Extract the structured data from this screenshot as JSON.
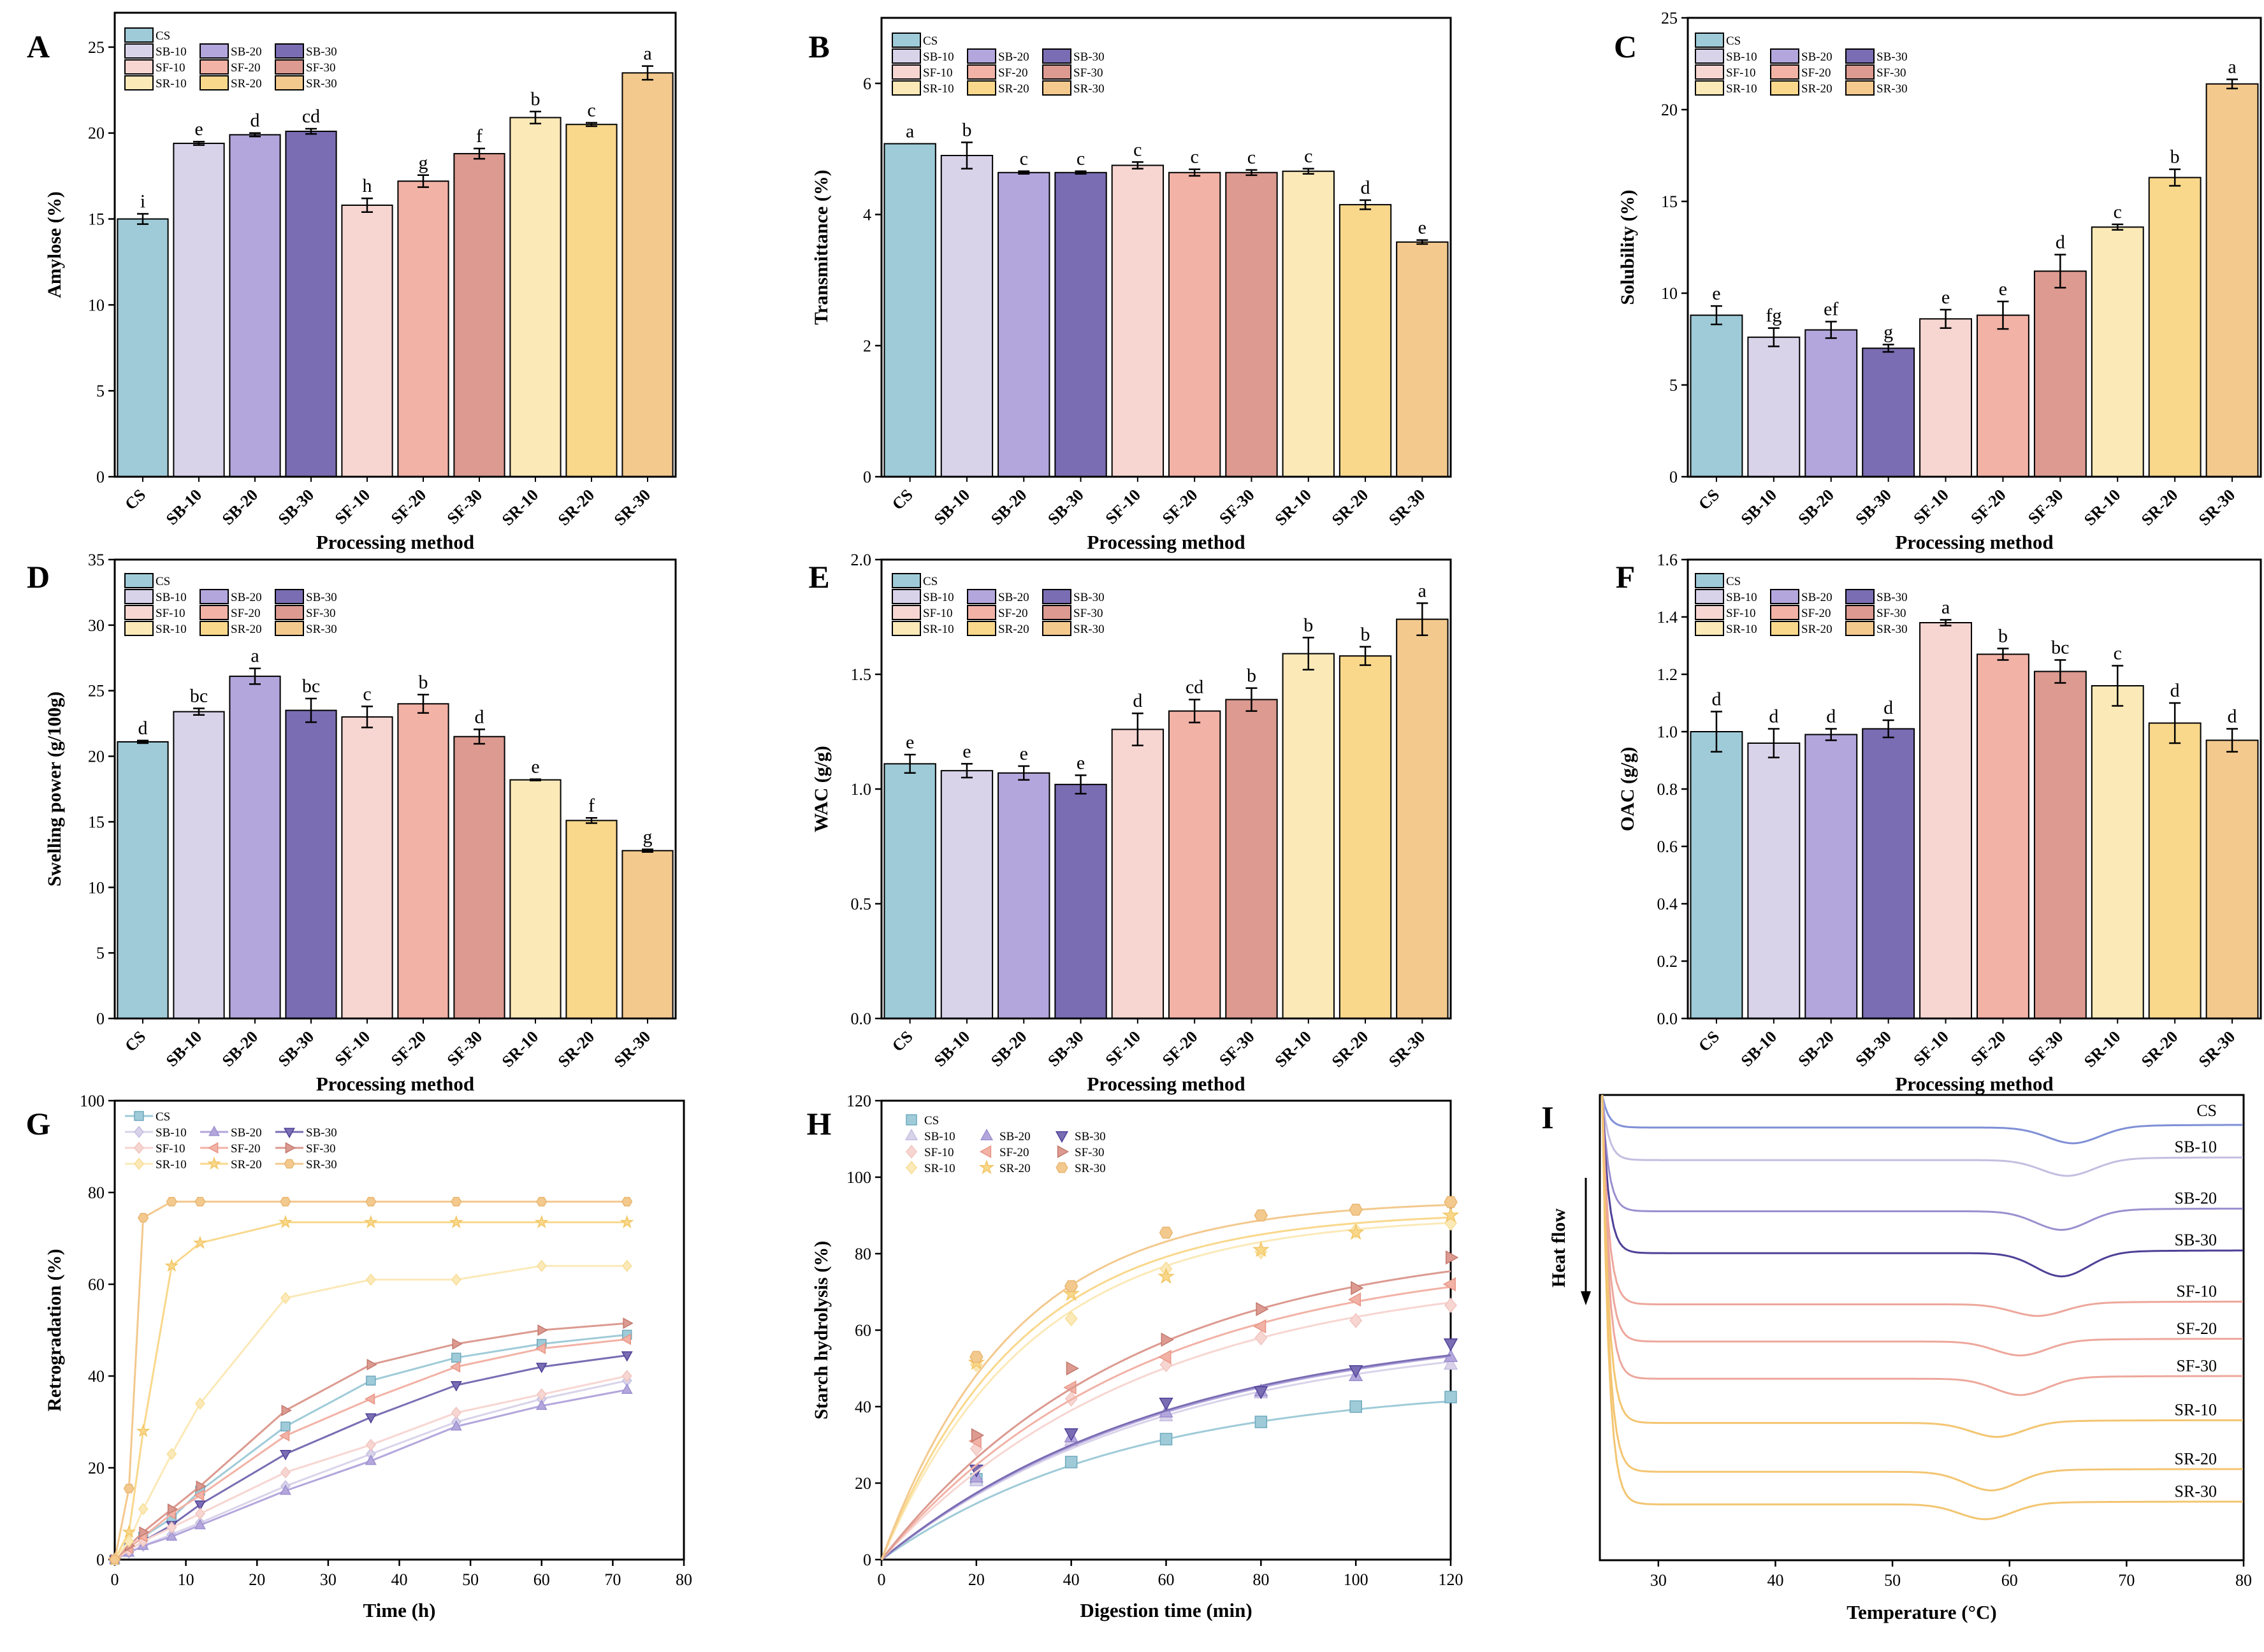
{
  "colors": {
    "CS": "#9fcbd8",
    "SB-10": "#d9d3ea",
    "SB-20": "#b3a6dc",
    "SB-30": "#7a6db3",
    "SF-10": "#f7d6d2",
    "SF-20": "#f2b2a6",
    "SF-30": "#dc9a90",
    "SR-10": "#fbe9b8",
    "SR-20": "#f9d88c",
    "SR-30": "#f3c98e"
  },
  "legend_rows": [
    [
      "CS"
    ],
    [
      "SB-10",
      "SB-20",
      "SB-30"
    ],
    [
      "SF-10",
      "SF-20",
      "SF-30"
    ],
    [
      "SR-10",
      "SR-20",
      "SR-30"
    ]
  ],
  "chart_data": [
    {
      "panel": "A",
      "type": "bar",
      "categories": [
        "CS",
        "SB-10",
        "SB-20",
        "SB-30",
        "SF-10",
        "SF-20",
        "SF-30",
        "SR-10",
        "SR-20",
        "SR-30"
      ],
      "values": [
        15.0,
        19.4,
        19.9,
        20.1,
        15.8,
        17.2,
        18.8,
        20.9,
        20.5,
        23.5
      ],
      "errors": [
        0.3,
        0.1,
        0.1,
        0.15,
        0.4,
        0.35,
        0.3,
        0.35,
        0.1,
        0.4
      ],
      "letters": [
        "i",
        "e",
        "d",
        "cd",
        "h",
        "g",
        "f",
        "b",
        "c",
        "a"
      ],
      "xlabel": "Processing method",
      "ylabel": "Amylose (%)",
      "ylim": [
        0,
        27
      ],
      "yticks": [
        0,
        5,
        10,
        15,
        20,
        25
      ]
    },
    {
      "panel": "B",
      "type": "bar",
      "categories": [
        "CS",
        "SB-10",
        "SB-20",
        "SB-30",
        "SF-10",
        "SF-20",
        "SF-30",
        "SR-10",
        "SR-20",
        "SR-30"
      ],
      "values": [
        5.08,
        4.9,
        4.64,
        4.64,
        4.75,
        4.64,
        4.64,
        4.66,
        4.15,
        3.58
      ],
      "errors": [
        0.0,
        0.2,
        0.02,
        0.02,
        0.05,
        0.05,
        0.04,
        0.04,
        0.07,
        0.03
      ],
      "letters": [
        "a",
        "b",
        "c",
        "c",
        "c",
        "c",
        "c",
        "c",
        "d",
        "e"
      ],
      "xlabel": "Processing method",
      "ylabel": "Transmittance (%)",
      "ylim": [
        0,
        7
      ],
      "yticks": [
        0,
        2,
        4,
        6
      ]
    },
    {
      "panel": "C",
      "type": "bar",
      "categories": [
        "CS",
        "SB-10",
        "SB-20",
        "SB-30",
        "SF-10",
        "SF-20",
        "SF-30",
        "SR-10",
        "SR-20",
        "SR-30"
      ],
      "values": [
        8.8,
        7.6,
        8.0,
        7.0,
        8.6,
        8.8,
        11.2,
        13.6,
        16.3,
        21.4
      ],
      "errors": [
        0.5,
        0.5,
        0.45,
        0.2,
        0.5,
        0.75,
        0.9,
        0.15,
        0.45,
        0.25
      ],
      "letters": [
        "e",
        "fg",
        "ef",
        "g",
        "e",
        "e",
        "d",
        "c",
        "b",
        "a"
      ],
      "xlabel": "Processing method",
      "ylabel": "Solubility (%)",
      "ylim": [
        0,
        25
      ],
      "yticks": [
        0,
        5,
        10,
        15,
        20,
        25
      ]
    },
    {
      "panel": "D",
      "type": "bar",
      "categories": [
        "CS",
        "SB-10",
        "SB-20",
        "SB-30",
        "SF-10",
        "SF-20",
        "SF-30",
        "SR-10",
        "SR-20",
        "SR-30"
      ],
      "values": [
        21.1,
        23.4,
        26.1,
        23.5,
        23.0,
        24.0,
        21.5,
        18.2,
        15.1,
        12.8
      ],
      "errors": [
        0.1,
        0.25,
        0.6,
        0.9,
        0.8,
        0.7,
        0.55,
        0.05,
        0.2,
        0.1
      ],
      "letters": [
        "d",
        "bc",
        "a",
        "bc",
        "c",
        "b",
        "d",
        "e",
        "f",
        "g"
      ],
      "xlabel": "Processing method",
      "ylabel": "Swelling power (g/100g)",
      "ylim": [
        0,
        35
      ],
      "yticks": [
        0,
        5,
        10,
        15,
        20,
        25,
        30,
        35
      ]
    },
    {
      "panel": "E",
      "type": "bar",
      "categories": [
        "CS",
        "SB-10",
        "SB-20",
        "SB-30",
        "SF-10",
        "SF-20",
        "SF-30",
        "SR-10",
        "SR-20",
        "SR-30"
      ],
      "values": [
        1.11,
        1.08,
        1.07,
        1.02,
        1.26,
        1.34,
        1.39,
        1.59,
        1.58,
        1.74
      ],
      "errors": [
        0.04,
        0.03,
        0.03,
        0.04,
        0.07,
        0.05,
        0.05,
        0.07,
        0.04,
        0.07
      ],
      "letters": [
        "e",
        "e",
        "e",
        "e",
        "d",
        "cd",
        "b",
        "b",
        "b",
        "a"
      ],
      "xlabel": "Processing method",
      "ylabel": "WAC (g/g)",
      "ylim": [
        0,
        2.0
      ],
      "yticks": [
        0.0,
        0.5,
        1.0,
        1.5,
        2.0
      ]
    },
    {
      "panel": "F",
      "type": "bar",
      "categories": [
        "CS",
        "SB-10",
        "SB-20",
        "SB-30",
        "SF-10",
        "SF-20",
        "SF-30",
        "SR-10",
        "SR-20",
        "SR-30"
      ],
      "values": [
        1.0,
        0.96,
        0.99,
        1.01,
        1.38,
        1.27,
        1.21,
        1.16,
        1.03,
        0.97
      ],
      "errors": [
        0.07,
        0.05,
        0.02,
        0.03,
        0.01,
        0.02,
        0.04,
        0.07,
        0.07,
        0.04
      ],
      "letters": [
        "d",
        "d",
        "d",
        "d",
        "a",
        "b",
        "bc",
        "c",
        "d",
        "d"
      ],
      "xlabel": "Processing method",
      "ylabel": "OAC (g/g)",
      "ylim": [
        0,
        1.6
      ],
      "yticks": [
        0.0,
        0.2,
        0.4,
        0.6,
        0.8,
        1.0,
        1.2,
        1.4,
        1.6
      ]
    },
    {
      "panel": "G",
      "type": "line",
      "x": [
        0,
        2,
        4,
        8,
        12,
        24,
        36,
        48,
        60,
        72
      ],
      "series": [
        {
          "name": "CS",
          "values": [
            0,
            2.5,
            5,
            9,
            15,
            29,
            39,
            44,
            47,
            49
          ]
        },
        {
          "name": "SB-10",
          "values": [
            0,
            1.5,
            3,
            5.5,
            8,
            16,
            23,
            30,
            35,
            39
          ]
        },
        {
          "name": "SB-20",
          "values": [
            0,
            1.5,
            3,
            5,
            7.5,
            15,
            21.5,
            29,
            33.5,
            37
          ]
        },
        {
          "name": "SB-30",
          "values": [
            0,
            2,
            4,
            7.5,
            12,
            23,
            31,
            38,
            42,
            44.5
          ]
        },
        {
          "name": "SF-10",
          "values": [
            0,
            2,
            4,
            7,
            10,
            19,
            25,
            32,
            36,
            40
          ]
        },
        {
          "name": "SF-20",
          "values": [
            0,
            2.5,
            5,
            10,
            14,
            27,
            35,
            42,
            46,
            48
          ]
        },
        {
          "name": "SF-30",
          "values": [
            0,
            3,
            6,
            11,
            16,
            32.5,
            42.5,
            47,
            50,
            51.5
          ]
        },
        {
          "name": "SR-10",
          "values": [
            0,
            4,
            11,
            23,
            34,
            57,
            61,
            61,
            64,
            64
          ]
        },
        {
          "name": "SR-20",
          "values": [
            0,
            6,
            28,
            64,
            69,
            73.5,
            73.5,
            73.5,
            73.5,
            73.5
          ]
        },
        {
          "name": "SR-30",
          "values": [
            0,
            15.5,
            74.5,
            78,
            78,
            78,
            78,
            78,
            78,
            78
          ]
        }
      ],
      "xlabel": "Time (h)",
      "ylabel": "Retrogradation (%)",
      "xlim": [
        0,
        80
      ],
      "ylim": [
        0,
        100
      ],
      "xticks": [
        0,
        10,
        20,
        30,
        40,
        50,
        60,
        70,
        80
      ],
      "yticks": [
        0,
        20,
        40,
        60,
        80,
        100
      ]
    },
    {
      "panel": "H",
      "type": "scatter",
      "x": [
        0,
        20,
        40,
        60,
        80,
        100,
        120
      ],
      "series": [
        {
          "name": "CS",
          "marker": "square",
          "values": [
            0,
            21,
            25.5,
            31.5,
            36,
            40,
            42.5
          ],
          "fit": [
            46,
            0.0192
          ]
        },
        {
          "name": "SB-10",
          "marker": "triangle-up",
          "values": [
            0,
            20.5,
            31,
            37.5,
            43.5,
            48,
            51
          ],
          "fit": [
            60,
            0.0165
          ]
        },
        {
          "name": "SB-20",
          "marker": "triangle-up",
          "values": [
            0,
            21.5,
            32,
            38.5,
            44,
            48,
            53
          ],
          "fit": [
            62,
            0.0162
          ]
        },
        {
          "name": "SB-30",
          "marker": "triangle-down",
          "values": [
            0,
            23.5,
            33,
            41,
            44,
            49.5,
            56.5
          ],
          "fit": [
            62,
            0.0165
          ]
        },
        {
          "name": "SF-10",
          "marker": "diamond",
          "values": [
            0,
            29,
            42,
            51,
            58,
            62.5,
            66.5
          ],
          "fit": [
            76,
            0.018
          ]
        },
        {
          "name": "SF-20",
          "marker": "triangle-left",
          "values": [
            0,
            31,
            45,
            53,
            61,
            68,
            72
          ],
          "fit": [
            80,
            0.0185
          ]
        },
        {
          "name": "SF-30",
          "marker": "triangle-right",
          "values": [
            0,
            32.5,
            50,
            57.5,
            65.5,
            71,
            79
          ],
          "fit": [
            84,
            0.019
          ]
        },
        {
          "name": "SR-10",
          "marker": "diamond",
          "values": [
            0,
            51,
            63,
            76,
            80.5,
            86,
            88
          ],
          "fit": [
            90,
            0.032
          ]
        },
        {
          "name": "SR-20",
          "marker": "star",
          "values": [
            0,
            51.5,
            69.5,
            74,
            81,
            85.5,
            90
          ],
          "fit": [
            91,
            0.034
          ]
        },
        {
          "name": "SR-30",
          "marker": "hexagon",
          "values": [
            0,
            53,
            71.5,
            85.5,
            90,
            91.5,
            93.5
          ],
          "fit": [
            94,
            0.036
          ]
        }
      ],
      "xlabel": "Digestion time (min)",
      "ylabel": "Starch hydrolysis (%)",
      "xlim": [
        0,
        120
      ],
      "ylim": [
        0,
        120
      ],
      "xticks": [
        0,
        20,
        40,
        60,
        80,
        100,
        120
      ],
      "yticks": [
        0,
        20,
        40,
        60,
        80,
        100,
        120
      ]
    },
    {
      "panel": "I",
      "type": "line",
      "series": [
        {
          "name": "CS",
          "baseline": 93,
          "peak_temp": 65.5,
          "depth": 3.4
        },
        {
          "name": "SB-10",
          "baseline": 86,
          "peak_temp": 65,
          "depth": 3.4
        },
        {
          "name": "SB-20",
          "baseline": 75,
          "peak_temp": 64.5,
          "depth": 4
        },
        {
          "name": "SB-30",
          "baseline": 66,
          "peak_temp": 64.5,
          "depth": 5
        },
        {
          "name": "SF-10",
          "baseline": 55,
          "peak_temp": 62.5,
          "depth": 2.5
        },
        {
          "name": "SF-20",
          "baseline": 47,
          "peak_temp": 61,
          "depth": 3
        },
        {
          "name": "SF-30",
          "baseline": 39,
          "peak_temp": 61,
          "depth": 3.5
        },
        {
          "name": "SR-10",
          "baseline": 29.5,
          "peak_temp": 59,
          "depth": 3
        },
        {
          "name": "SR-20",
          "baseline": 19,
          "peak_temp": 58.5,
          "depth": 4
        },
        {
          "name": "SR-30",
          "baseline": 12,
          "peak_temp": 58,
          "depth": 3.2
        }
      ],
      "xlabel": "Temperature (°C)",
      "ylabel": "Heat flow",
      "xlim": [
        25,
        80
      ],
      "xticks": [
        30,
        40,
        50,
        60,
        70,
        80
      ]
    }
  ],
  "panel_labels": [
    "A",
    "B",
    "C",
    "D",
    "E",
    "F",
    "G",
    "H",
    "I"
  ]
}
